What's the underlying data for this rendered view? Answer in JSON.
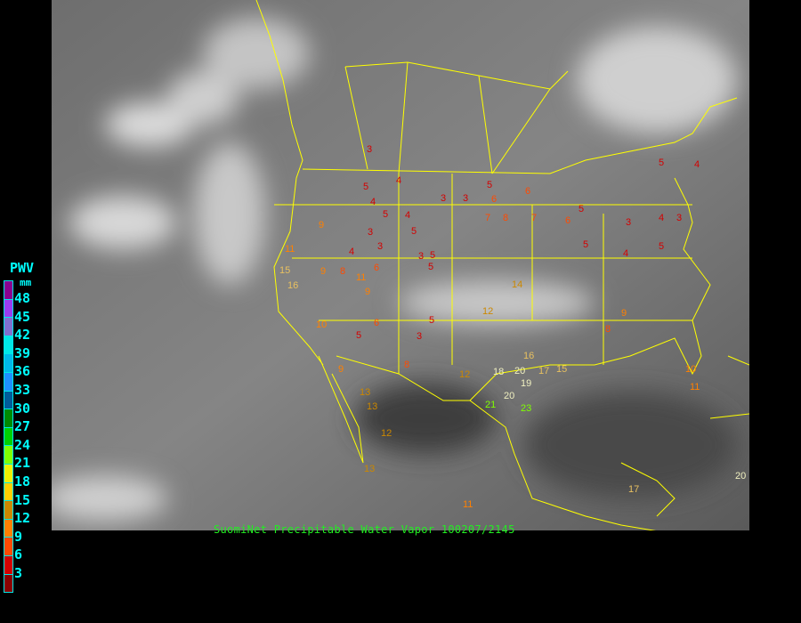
{
  "legend": {
    "title": "PWV",
    "unit": "mm",
    "labels": [
      "48",
      "45",
      "42",
      "39",
      "36",
      "33",
      "30",
      "27",
      "24",
      "21",
      "18",
      "15",
      "12",
      "9",
      "6",
      "3"
    ],
    "colors": [
      "#8b0090",
      "#9a3cf0",
      "#8070d0",
      "#00e8e8",
      "#00b8e8",
      "#1e90ff",
      "#005c9a",
      "#008a00",
      "#00d000",
      "#80ff00",
      "#f0f000",
      "#ffd000",
      "#cc8800",
      "#ff8000",
      "#ff4a00",
      "#d40000",
      "#8b0000"
    ]
  },
  "caption": "SuomiNet Precipitable Water Vapor 100207/2145",
  "boundary_color": "#ffff00",
  "stations": [
    "3",
    "4",
    "5",
    "3",
    "3",
    "5",
    "6",
    "5",
    "3",
    "4",
    "6",
    "4",
    "5",
    "4",
    "5",
    "3",
    "3",
    "5",
    "7",
    "8",
    "7",
    "6",
    "5",
    "5",
    "5",
    "4",
    "4",
    "3",
    "4",
    "5",
    "3",
    "9",
    "11",
    "9",
    "16",
    "15",
    "11",
    "8",
    "6",
    "9",
    "10",
    "5",
    "6",
    "5",
    "3",
    "14",
    "12",
    "12",
    "13",
    "16",
    "15",
    "18",
    "17",
    "19",
    "20",
    "21",
    "20",
    "23",
    "13",
    "12",
    "13",
    "11",
    "9",
    "8",
    "17",
    "20",
    "10",
    "9",
    "11",
    "8"
  ]
}
